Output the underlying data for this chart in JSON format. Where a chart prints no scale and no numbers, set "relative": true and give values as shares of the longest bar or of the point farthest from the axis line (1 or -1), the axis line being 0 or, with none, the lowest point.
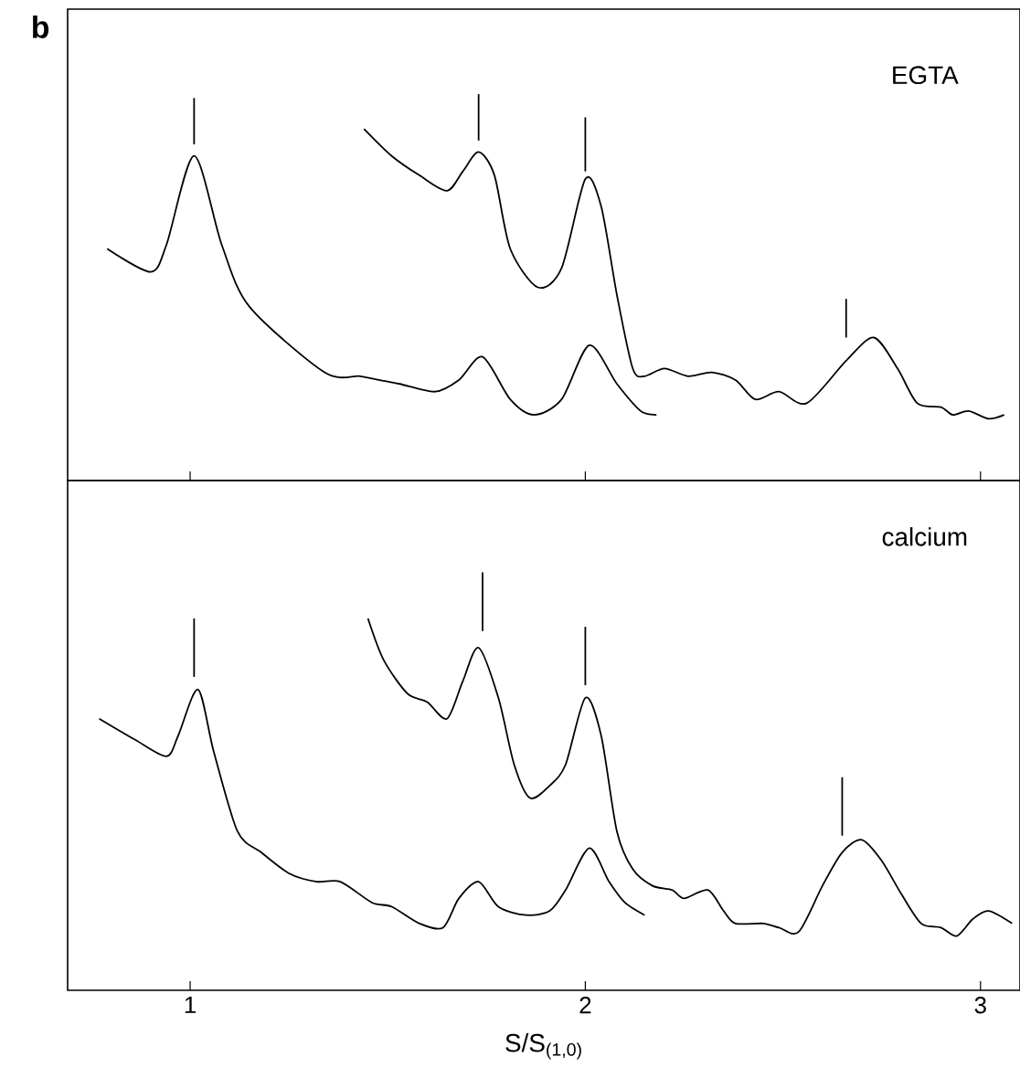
{
  "chart_data": [
    {
      "type": "line",
      "title": "b",
      "annotations": [
        "EGTA"
      ],
      "relative": true,
      "xlim": [
        0.69,
        3.1
      ],
      "xticks": [
        1,
        2,
        3
      ],
      "tick_labels": false,
      "marker": "none",
      "series": [
        {
          "color": "#000000",
          "x": [
            0.79,
            0.9,
            0.94,
            1.01,
            1.08,
            1.15,
            1.34,
            1.43,
            1.48,
            1.53,
            1.62,
            1.68,
            1.74,
            1.81,
            1.87,
            1.94,
            2.01,
            2.08,
            2.14,
            2.18
          ],
          "values": [
            0.6,
            0.54,
            0.61,
            0.84,
            0.61,
            0.45,
            0.28,
            0.27,
            0.26,
            0.25,
            0.23,
            0.26,
            0.32,
            0.21,
            0.17,
            0.21,
            0.35,
            0.25,
            0.18,
            0.17
          ]
        },
        {
          "color": "#000000",
          "x": [
            1.44,
            1.51,
            1.58,
            1.65,
            1.69,
            1.73,
            1.77,
            1.81,
            1.88,
            1.94,
            2.0,
            2.04,
            2.08,
            2.12,
            2.15,
            2.2,
            2.26,
            2.32,
            2.38,
            2.43,
            2.49,
            2.56,
            2.66,
            2.73,
            2.79,
            2.84,
            2.9,
            2.93,
            2.97,
            3.02,
            3.06
          ],
          "values": [
            0.91,
            0.84,
            0.79,
            0.75,
            0.8,
            0.85,
            0.79,
            0.6,
            0.5,
            0.55,
            0.78,
            0.71,
            0.48,
            0.29,
            0.27,
            0.29,
            0.27,
            0.28,
            0.26,
            0.21,
            0.23,
            0.2,
            0.31,
            0.37,
            0.29,
            0.2,
            0.19,
            0.17,
            0.18,
            0.16,
            0.17
          ]
        },
        {
          "color": "#000000",
          "x": [
            1.01,
            1.01
          ],
          "values": [
            0.87,
            0.99
          ]
        },
        {
          "color": "#000000",
          "x": [
            1.73,
            1.73
          ],
          "values": [
            0.88,
            1.0
          ]
        },
        {
          "color": "#000000",
          "x": [
            2.0,
            2.0
          ],
          "values": [
            0.8,
            0.94
          ]
        },
        {
          "color": "#000000",
          "x": [
            2.66,
            2.66
          ],
          "values": [
            0.37,
            0.47
          ]
        }
      ]
    },
    {
      "type": "line",
      "xlabel": "S/S$_{(1,0)}$",
      "annotations": [
        "calcium"
      ],
      "relative": true,
      "xlim": [
        0.69,
        3.1
      ],
      "xticks": [
        1,
        2,
        3
      ],
      "marker": "none",
      "series": [
        {
          "color": "#000000",
          "x": [
            0.77,
            0.86,
            0.94,
            0.97,
            1.02,
            1.06,
            1.12,
            1.18,
            1.25,
            1.32,
            1.38,
            1.46,
            1.51,
            1.58,
            1.64,
            1.68,
            1.73,
            1.78,
            1.85,
            1.91,
            1.95,
            2.01,
            2.06,
            2.1,
            2.15
          ],
          "values": [
            0.65,
            0.6,
            0.56,
            0.61,
            0.72,
            0.57,
            0.38,
            0.33,
            0.28,
            0.26,
            0.26,
            0.21,
            0.2,
            0.16,
            0.15,
            0.22,
            0.26,
            0.2,
            0.18,
            0.19,
            0.24,
            0.34,
            0.26,
            0.21,
            0.18
          ]
        },
        {
          "color": "#000000",
          "x": [
            1.45,
            1.49,
            1.55,
            1.6,
            1.65,
            1.69,
            1.73,
            1.78,
            1.82,
            1.86,
            1.91,
            1.95,
            2.0,
            2.04,
            2.08,
            2.12,
            2.17,
            2.22,
            2.25,
            2.31,
            2.35,
            2.38,
            2.45,
            2.49,
            2.54,
            2.6,
            2.65,
            2.7,
            2.75,
            2.8,
            2.85,
            2.9,
            2.94,
            2.98,
            3.02,
            3.08
          ],
          "values": [
            0.89,
            0.79,
            0.71,
            0.69,
            0.65,
            0.74,
            0.82,
            0.7,
            0.54,
            0.46,
            0.49,
            0.54,
            0.7,
            0.61,
            0.38,
            0.29,
            0.25,
            0.24,
            0.22,
            0.24,
            0.19,
            0.16,
            0.16,
            0.15,
            0.14,
            0.25,
            0.33,
            0.36,
            0.31,
            0.23,
            0.16,
            0.15,
            0.13,
            0.17,
            0.19,
            0.16
          ]
        },
        {
          "color": "#000000",
          "x": [
            1.01,
            1.01
          ],
          "values": [
            0.75,
            0.89
          ]
        },
        {
          "color": "#000000",
          "x": [
            1.74,
            1.74
          ],
          "values": [
            0.86,
            1.0
          ]
        },
        {
          "color": "#000000",
          "x": [
            2.0,
            2.0
          ],
          "values": [
            0.73,
            0.87
          ]
        },
        {
          "color": "#000000",
          "x": [
            2.65,
            2.65
          ],
          "values": [
            0.37,
            0.51
          ]
        }
      ]
    }
  ]
}
